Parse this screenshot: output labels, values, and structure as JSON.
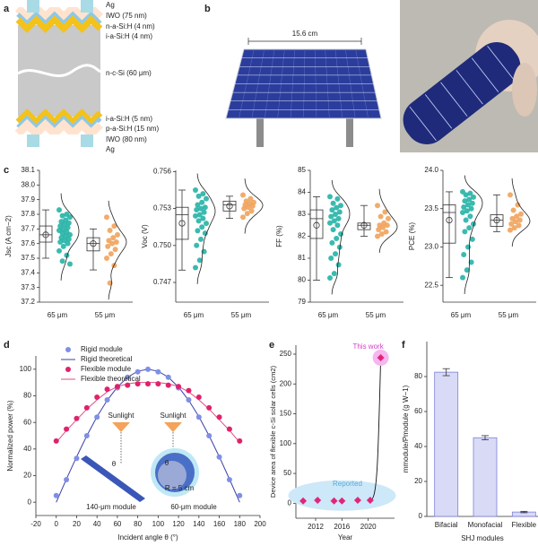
{
  "panel_labels": [
    "a",
    "b",
    "c",
    "d",
    "e",
    "f"
  ],
  "layer_diagram": {
    "top_layers": [
      "Ag",
      "IWO (75 nm)",
      "n-a-Si:H (4 nm)",
      "i-a-Si:H (4 nm)"
    ],
    "wafer": "n-c-Si (60 μm)",
    "bottom_layers": [
      "i-a-Si:H (5 nm)",
      "p-a-Si:H (15 nm)",
      "IWO (80 nm)",
      "Ag"
    ]
  },
  "photo": {
    "scale_label": "15.6 cm"
  },
  "chart_data": [
    {
      "type": "box",
      "ylabel": "Jsc (A cm−2)",
      "categories": [
        "65 μm",
        "55 μm"
      ],
      "colors": [
        "#26b3a6",
        "#f0a35c"
      ],
      "points": [
        [
          37.83,
          37.8,
          37.79,
          37.78,
          37.76,
          37.75,
          37.74,
          37.73,
          37.72,
          37.71,
          37.7,
          37.69,
          37.68,
          37.67,
          37.66,
          37.65,
          37.64,
          37.63,
          37.62,
          37.61,
          37.6,
          37.58,
          37.55,
          37.52,
          37.48,
          37.46
        ],
        [
          37.78,
          37.72,
          37.69,
          37.66,
          37.64,
          37.62,
          37.61,
          37.6,
          37.58,
          37.56,
          37.53,
          37.5,
          37.45,
          37.33
        ]
      ],
      "whisker_low": [
        37.5,
        37.42
      ],
      "q1": [
        37.61,
        37.55
      ],
      "median": [
        37.66,
        37.6
      ],
      "q3": [
        37.72,
        37.64
      ],
      "whisker_high": [
        37.83,
        37.7
      ],
      "mean": [
        37.66,
        37.6
      ],
      "ylim": [
        37.2,
        38.1
      ],
      "yticks": [
        37.2,
        37.3,
        37.4,
        37.5,
        37.6,
        37.7,
        37.8,
        37.9,
        {
          "value": 38,
          "label": "38.0"
        },
        38.1
      ]
    },
    {
      "type": "box",
      "ylabel": "Voc (V)",
      "categories": [
        "65 μm",
        "55 μm"
      ],
      "colors": [
        "#26b3a6",
        "#f0a35c"
      ],
      "points": [
        [
          0.7545,
          0.7542,
          0.754,
          0.7538,
          0.7535,
          0.7533,
          0.7531,
          0.753,
          0.7529,
          0.7527,
          0.7525,
          0.7524,
          0.7522,
          0.752,
          0.7518,
          0.7515,
          0.7512,
          0.751,
          0.7505,
          0.75,
          0.7495,
          0.7488,
          0.7482
        ],
        [
          0.7541,
          0.7538,
          0.7536,
          0.7535,
          0.7534,
          0.7533,
          0.7532,
          0.7531,
          0.753,
          0.7528,
          0.7526,
          0.7523
        ]
      ],
      "whisker_low": [
        0.748,
        0.7522
      ],
      "q1": [
        0.7505,
        0.7528
      ],
      "median": [
        0.7525,
        0.7533
      ],
      "q3": [
        0.7531,
        0.7536
      ],
      "whisker_high": [
        0.7545,
        0.754
      ],
      "mean": [
        0.7518,
        0.7532
      ],
      "ylim": [
        0.7454,
        0.7561
      ],
      "yticks": [
        0.747,
        {
          "value": 0.75,
          "label": "0.750"
        },
        0.753,
        0.756
      ]
    },
    {
      "type": "box",
      "ylabel": "FF (%)",
      "categories": [
        "65 μm",
        "55 μm"
      ],
      "colors": [
        "#26b3a6",
        "#f0a35c"
      ],
      "points": [
        [
          83.8,
          83.7,
          83.5,
          83.4,
          83.3,
          83.2,
          83.1,
          83.0,
          82.9,
          82.8,
          82.7,
          82.6,
          82.5,
          82.3,
          82.1,
          81.9,
          81.7,
          81.5,
          81.2,
          81.0,
          80.7,
          80.3,
          80.1
        ],
        [
          83.4,
          83.1,
          82.9,
          82.8,
          82.6,
          82.5,
          82.5,
          82.4,
          82.3,
          82.2,
          82.1,
          82.0
        ]
      ],
      "whisker_low": [
        80,
        82
      ],
      "q1": [
        81.9,
        82.3
      ],
      "median": [
        82.8,
        82.5
      ],
      "q3": [
        83.2,
        82.6
      ],
      "whisker_high": [
        83.8,
        83.4
      ],
      "mean": [
        82.5,
        82.5
      ],
      "ylim": [
        79,
        85
      ],
      "yticks": [
        79,
        80,
        81,
        82,
        83,
        84,
        85
      ]
    },
    {
      "type": "box",
      "ylabel": "PCE (%)",
      "categories": [
        "65 μm",
        "55 μm"
      ],
      "colors": [
        "#26b3a6",
        "#f0a35c"
      ],
      "points": [
        [
          23.72,
          23.7,
          23.68,
          23.65,
          23.62,
          23.6,
          23.57,
          23.55,
          23.52,
          23.5,
          23.47,
          23.45,
          23.4,
          23.35,
          23.3,
          23.25,
          23.2,
          23.1,
          23.0,
          22.9,
          22.8,
          22.7,
          22.6
        ],
        [
          23.68,
          23.55,
          23.48,
          23.43,
          23.4,
          23.37,
          23.35,
          23.33,
          23.3,
          23.28,
          23.25,
          23.22
        ]
      ],
      "whisker_low": [
        22.6,
        23.2
      ],
      "q1": [
        23.05,
        23.27
      ],
      "median": [
        23.45,
        23.35
      ],
      "q3": [
        23.55,
        23.42
      ],
      "whisker_high": [
        23.72,
        23.68
      ],
      "mean": [
        23.35,
        23.35
      ],
      "ylim": [
        22.28,
        24.0
      ],
      "yticks": [
        22.5,
        {
          "value": 23,
          "label": "23.0"
        },
        23.5,
        {
          "value": 24,
          "label": "24.0"
        }
      ]
    },
    {
      "type": "line",
      "xlabel": "Incident angle θ (°)",
      "ylabel": "Normalized power (%)",
      "x": [
        0,
        10,
        20,
        30,
        40,
        50,
        60,
        70,
        80,
        90,
        100,
        110,
        120,
        130,
        140,
        150,
        160,
        170,
        180
      ],
      "series": [
        {
          "name": "Rigid module",
          "color": "#7f8fe6",
          "marker": true,
          "values": [
            5,
            17,
            33,
            50,
            64,
            77,
            86,
            94,
            98,
            100,
            98,
            94,
            86,
            77,
            64,
            50,
            34,
            17,
            5
          ]
        },
        {
          "name": "Rigid theoretical",
          "color": "#3b3fa6",
          "marker": false,
          "values": [
            0,
            17.4,
            34.2,
            50,
            64.3,
            76.6,
            86.6,
            94,
            98.5,
            100,
            98.5,
            94,
            86.6,
            76.6,
            64.3,
            50,
            34.2,
            17.4,
            0
          ]
        },
        {
          "name": "Flexible module",
          "color": "#e0226b",
          "marker": true,
          "values": [
            46,
            55,
            63,
            71,
            79,
            85,
            87,
            88,
            89,
            89,
            89,
            88,
            87,
            84,
            79,
            71,
            64,
            55,
            46
          ]
        },
        {
          "name": "Flexible theoretical",
          "color": "#e04d86",
          "marker": false,
          "values": [
            45,
            54,
            62,
            70,
            77,
            83,
            87,
            89,
            90,
            90,
            90,
            89,
            87,
            83,
            77,
            70,
            62,
            54,
            45
          ]
        }
      ],
      "annotations": [
        "Sunlight",
        "Sunlight",
        "θ",
        "θ",
        "R = 5 cm",
        "140-μm module",
        "60-μm module"
      ],
      "xlim": [
        -20,
        200
      ],
      "xticks": [
        -20,
        0,
        20,
        40,
        60,
        80,
        100,
        120,
        140,
        160,
        180,
        200
      ],
      "ylim": [
        -10,
        110
      ],
      "yticks": [
        0,
        20,
        40,
        60,
        80,
        100
      ]
    },
    {
      "type": "scatter",
      "xlabel": "Year",
      "ylabel": "Device area of flexible c-Si solar cells (cm2)",
      "series": [
        {
          "name": "Reported",
          "color": "#e0267a",
          "x": [
            2010.1,
            2012.3,
            2014.8,
            2016,
            2018.4,
            2020.3
          ],
          "values": [
            4,
            5,
            4,
            4,
            5,
            5
          ]
        },
        {
          "name": "This work",
          "color": "#e0267a",
          "x": [
            2021.9
          ],
          "values": [
            244
          ]
        }
      ],
      "xlim": [
        2009,
        2024
      ],
      "xticks": [
        2012,
        2016,
        2020
      ],
      "ylim": [
        -25,
        265
      ],
      "yticks": [
        0,
        50,
        100,
        150,
        200,
        250
      ]
    },
    {
      "type": "bar",
      "xlabel": "SHJ modules",
      "ylabel": "mmodule/Pmodule (g W−1)",
      "categories": [
        "Bifacial",
        "Monofacial",
        "Flexible"
      ],
      "values": [
        82.5,
        45,
        2.5
      ],
      "errors": [
        2,
        1.2,
        0.4
      ],
      "color": "#d9daf6",
      "edge_color": "#7d80d8",
      "ylim": [
        0,
        100
      ],
      "yticks": [
        0,
        20,
        40,
        60,
        80
      ]
    }
  ]
}
